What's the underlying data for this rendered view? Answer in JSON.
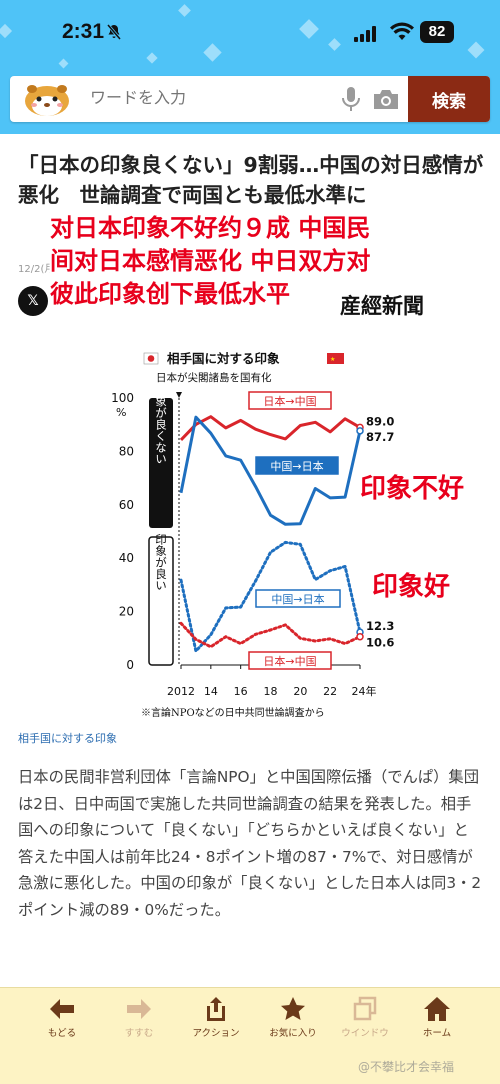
{
  "status_bar": {
    "time": "2:31",
    "battery": "82",
    "icons": [
      "bell-slash-icon",
      "signal-icon",
      "wifi-icon",
      "battery-icon"
    ]
  },
  "search": {
    "placeholder": "ワードを入力",
    "button_label": "検索",
    "icons": [
      "mascot-logo",
      "mic-icon",
      "camera-icon"
    ]
  },
  "article": {
    "headline": "「日本の印象良くない」9割弱…中国の対日感情が悪化　世論調査で両国とも最低水準に",
    "date": "12/2(月",
    "source": "産經新聞",
    "overlay_caption": "对日本印象不好约９成 中国民间对日本感情恶化 中日双方对彼此印象创下最低水平",
    "image_caption": "相手国に対する印象",
    "body": "日本の民間非営利団体「言論NPO」と中国国際伝播（でんぱ）集団は2日、日中両国で実施した共同世論調査の結果を発表した。相手国への印象について「良くない」「どちらかといえば良くない」と答えた中国人は前年比24・8ポイント増の87・7%で、対日感情が急激に悪化した。中国の印象が「良くない」とした日本人は同3・2ポイント減の89・0%だった。"
  },
  "chart_data": {
    "type": "line",
    "title": "相手国に対する印象",
    "annotation": "日本が尖閣諸島を国有化",
    "footnote": "※言論NPOなどの日中共同世論調査から",
    "ylabel_unit": "%",
    "ylim": [
      0,
      100
    ],
    "yticks": [
      "0",
      "20",
      "40",
      "60",
      "80",
      "100"
    ],
    "xticks": [
      "2012",
      "14",
      "16",
      "18",
      "20",
      "22",
      "24年"
    ],
    "x": [
      2012,
      2013,
      2014,
      2015,
      2016,
      2017,
      2018,
      2019,
      2020,
      2021,
      2022,
      2023,
      2024
    ],
    "groups": [
      {
        "label": "印象が良くない"
      },
      {
        "label": "印象が良い"
      }
    ],
    "side_labels": [
      "印象不好",
      "印象好"
    ],
    "series": [
      {
        "name": "日本→中国",
        "group": "bad",
        "color": "#d9252b",
        "style": "solid",
        "values": [
          84.3,
          90.1,
          93.0,
          88.8,
          91.6,
          88.3,
          86.3,
          84.7,
          89.7,
          90.9,
          87.3,
          92.2,
          89.0
        ],
        "end_label": "89.0"
      },
      {
        "name": "中国→日本",
        "group": "bad",
        "color": "#1e6fbf",
        "style": "solid",
        "values": [
          64.5,
          92.8,
          86.8,
          78.3,
          76.7,
          66.8,
          56.1,
          52.7,
          52.9,
          66.1,
          62.6,
          62.9,
          87.7
        ],
        "end_label": "87.7"
      },
      {
        "name": "中国→日本",
        "group": "good",
        "color": "#1e6fbf",
        "style": "dotted",
        "values": [
          31.8,
          5.2,
          11.3,
          21.4,
          21.7,
          31.5,
          42.2,
          45.9,
          45.2,
          32.0,
          35.3,
          36.9,
          12.3
        ],
        "end_label": "12.3"
      },
      {
        "name": "日本→中国",
        "group": "good",
        "color": "#d9252b",
        "style": "dotted",
        "values": [
          15.6,
          9.6,
          6.8,
          10.6,
          8.0,
          11.5,
          13.1,
          15.0,
          10.0,
          9.0,
          9.8,
          8.0,
          10.6
        ],
        "end_label": "10.6"
      }
    ]
  },
  "bottom_nav": [
    {
      "label": "もどる",
      "icon": "back-arrow-icon",
      "enabled": true
    },
    {
      "label": "すすむ",
      "icon": "forward-arrow-icon",
      "enabled": false
    },
    {
      "label": "アクション",
      "icon": "share-icon",
      "enabled": true
    },
    {
      "label": "お気に入り",
      "icon": "star-icon",
      "enabled": true
    },
    {
      "label": "ウインドウ",
      "icon": "windows-icon",
      "enabled": false
    },
    {
      "label": "ホーム",
      "icon": "home-icon",
      "enabled": true
    }
  ],
  "watermark": "@不攀比才会幸福",
  "colors": {
    "header": "#4fc3f7",
    "search_button": "#8b2a14",
    "overlay_red": "#e8001c",
    "nav_bg": "#fdf3c4"
  }
}
